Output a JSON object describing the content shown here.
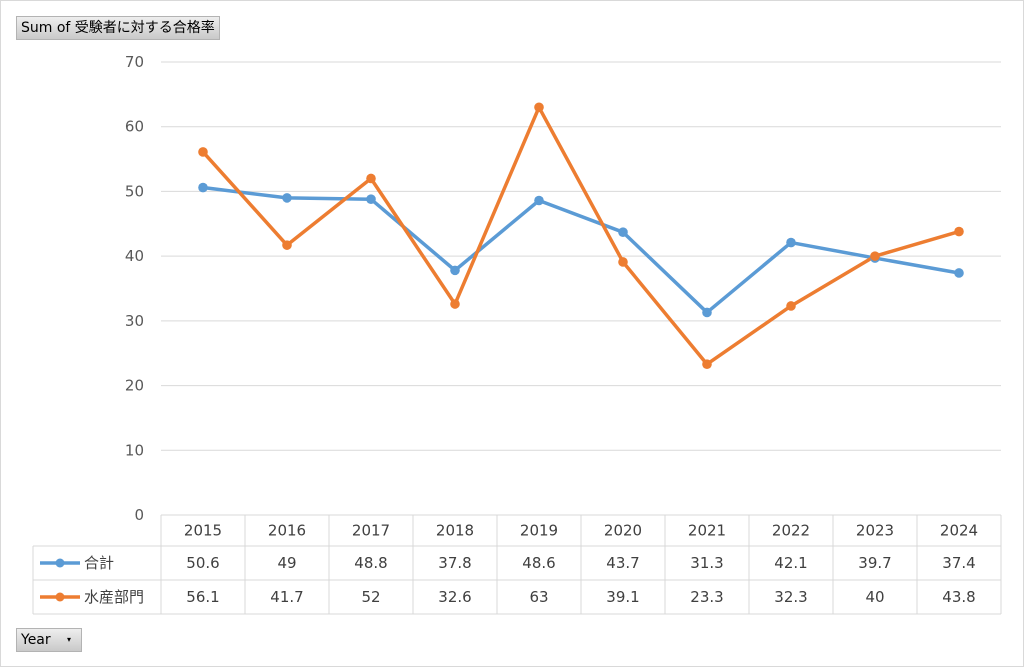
{
  "value_field_button": "Sum of 受験者に対する合格率",
  "axis_field_button": "Year",
  "axis_field_arrow": "▾",
  "chart_data": {
    "type": "line",
    "title": "",
    "xlabel": "",
    "ylabel": "",
    "categories": [
      "2015",
      "2016",
      "2017",
      "2018",
      "2019",
      "2020",
      "2021",
      "2022",
      "2023",
      "2024"
    ],
    "ylim": [
      0,
      70
    ],
    "yticks": [
      0,
      10,
      20,
      30,
      40,
      50,
      60,
      70
    ],
    "grid": true,
    "legend": "data-table",
    "series": [
      {
        "name": "合計",
        "color": "#5b9bd5",
        "values": [
          50.6,
          49,
          48.8,
          37.8,
          48.6,
          43.7,
          31.3,
          42.1,
          39.7,
          37.4
        ]
      },
      {
        "name": "水産部門",
        "color": "#ed7d31",
        "values": [
          56.1,
          41.7,
          52,
          32.6,
          63,
          39.1,
          23.3,
          32.3,
          40,
          43.8
        ]
      }
    ]
  }
}
